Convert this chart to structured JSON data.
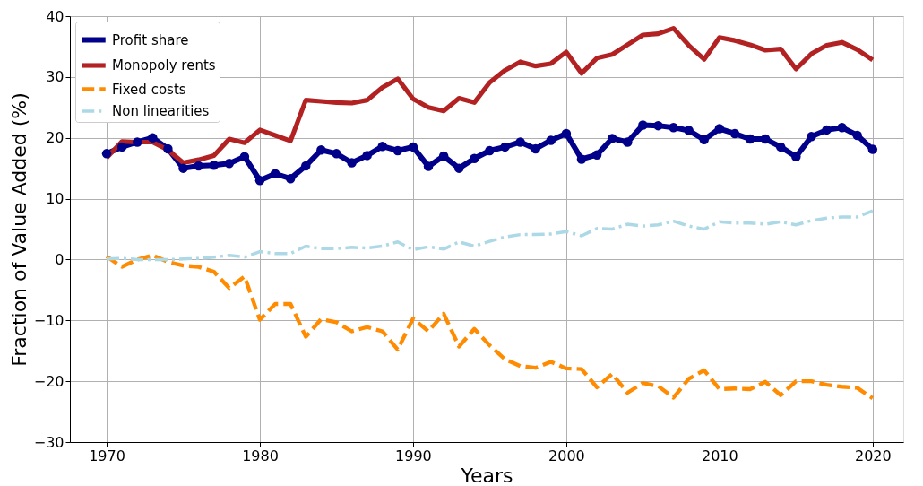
{
  "chart_data": {
    "type": "line",
    "xlabel": "Years",
    "ylabel": "Fraction of Value Added (%)",
    "x": [
      1970,
      1971,
      1972,
      1973,
      1974,
      1975,
      1976,
      1977,
      1978,
      1979,
      1980,
      1981,
      1982,
      1983,
      1984,
      1985,
      1986,
      1987,
      1988,
      1989,
      1990,
      1991,
      1992,
      1993,
      1994,
      1995,
      1996,
      1997,
      1998,
      1999,
      2000,
      2001,
      2002,
      2003,
      2004,
      2005,
      2006,
      2007,
      2008,
      2009,
      2010,
      2011,
      2012,
      2013,
      2014,
      2015,
      2016,
      2017,
      2018,
      2019,
      2020
    ],
    "series": [
      {
        "name": "Profit share",
        "color": "#00008b",
        "marker": "circle",
        "line_style": "solid",
        "values": [
          17.4,
          18.5,
          19.3,
          20.0,
          18.2,
          15.0,
          15.4,
          15.5,
          15.8,
          16.9,
          13.0,
          14.1,
          13.3,
          15.4,
          18.0,
          17.4,
          15.9,
          17.1,
          18.6,
          17.9,
          18.5,
          15.3,
          17.0,
          15.0,
          16.6,
          17.9,
          18.5,
          19.3,
          18.2,
          19.6,
          20.7,
          16.5,
          17.2,
          19.9,
          19.3,
          22.1,
          22.0,
          21.7,
          21.2,
          19.7,
          21.5,
          20.7,
          19.8,
          19.8,
          18.5,
          16.9,
          20.2,
          21.3,
          21.7,
          20.4,
          18.1
        ]
      },
      {
        "name": "Monopoly rents",
        "color": "#b22222",
        "marker": "none",
        "line_style": "solid",
        "values": [
          16.7,
          19.4,
          19.3,
          19.3,
          18.0,
          15.9,
          16.4,
          17.1,
          19.8,
          19.2,
          21.3,
          20.4,
          19.5,
          26.2,
          26.0,
          25.8,
          25.7,
          26.2,
          28.3,
          29.7,
          26.4,
          25.0,
          24.4,
          26.5,
          25.8,
          29.1,
          31.1,
          32.5,
          31.8,
          32.2,
          34.1,
          30.6,
          33.1,
          33.7,
          35.3,
          36.9,
          37.1,
          38.0,
          35.2,
          32.9,
          36.5,
          36.0,
          35.3,
          34.4,
          34.6,
          31.3,
          33.8,
          35.2,
          35.7,
          34.5,
          32.8
        ]
      },
      {
        "name": "Fixed costs",
        "color": "#ff8c00",
        "marker": "none",
        "line_style": "dashed",
        "values": [
          0.5,
          -1.2,
          0.0,
          0.7,
          -0.4,
          -1.0,
          -1.2,
          -2.0,
          -4.7,
          -2.8,
          -9.9,
          -7.3,
          -7.3,
          -12.7,
          -9.8,
          -10.3,
          -11.8,
          -11.1,
          -11.8,
          -14.8,
          -9.7,
          -11.8,
          -8.9,
          -14.3,
          -11.4,
          -14.1,
          -16.4,
          -17.5,
          -17.8,
          -16.8,
          -17.9,
          -18.0,
          -21.0,
          -18.8,
          -21.9,
          -20.3,
          -20.8,
          -22.7,
          -19.6,
          -18.2,
          -21.3,
          -21.2,
          -21.3,
          -20.1,
          -22.3,
          -20.0,
          -20.0,
          -20.6,
          -20.9,
          -21.1,
          -22.8
        ]
      },
      {
        "name": "Non linearities",
        "color": "#add8e6",
        "marker": "none",
        "line_style": "dashdot",
        "values": [
          0.1,
          0.2,
          0.0,
          0.0,
          0.0,
          0.1,
          0.2,
          0.4,
          0.7,
          0.4,
          1.3,
          1.0,
          1.0,
          2.2,
          1.8,
          1.8,
          2.0,
          1.9,
          2.2,
          2.9,
          1.6,
          2.1,
          1.7,
          2.9,
          2.2,
          3.0,
          3.7,
          4.1,
          4.1,
          4.2,
          4.6,
          3.9,
          5.1,
          5.0,
          5.8,
          5.5,
          5.7,
          6.3,
          5.5,
          5.0,
          6.2,
          6.0,
          6.0,
          5.8,
          6.2,
          5.7,
          6.4,
          6.8,
          7.0,
          7.0,
          8.0
        ]
      }
    ],
    "xlim": [
      1967.6,
      2022
    ],
    "xticks": [
      1970,
      1980,
      1990,
      2000,
      2010,
      2020
    ],
    "ylim": [
      -30,
      40
    ],
    "yticks": [
      -30,
      -20,
      -10,
      0,
      10,
      20,
      30,
      40
    ],
    "grid": true,
    "legend": "top left"
  }
}
